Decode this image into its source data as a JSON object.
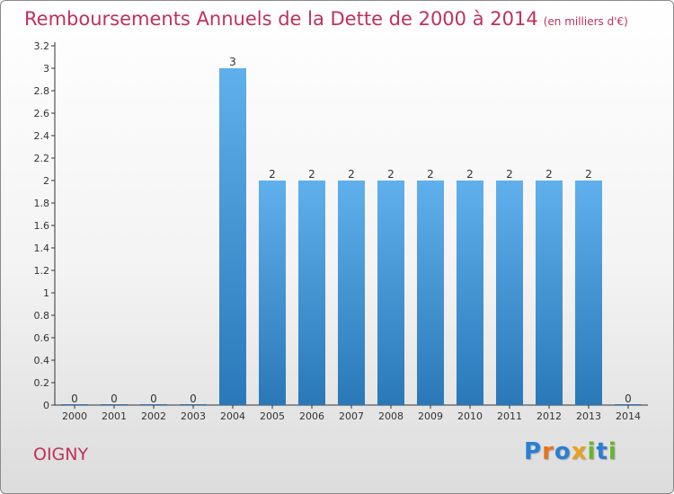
{
  "title": "Remboursements Annuels de la Dette de 2000 à 2014",
  "subtitle": "(en milliers d'€)",
  "commune": "OIGNY",
  "logo": {
    "text": "Proxiti",
    "colors": [
      "#2a7fd4",
      "#e8731f",
      "#2a7fd4",
      "#e8a21f",
      "#6bb42a",
      "#2a7fd4",
      "#6bb42a"
    ]
  },
  "colors": {
    "title": "#c0305a",
    "bar_top": "#5fb0ec",
    "bar_bottom": "#2a78b8",
    "axis": "#333333"
  },
  "chart_data": {
    "type": "bar",
    "title": "Remboursements Annuels de la Dette de 2000 à 2014",
    "xlabel": "",
    "ylabel": "",
    "categories": [
      "2000",
      "2001",
      "2002",
      "2003",
      "2004",
      "2005",
      "2006",
      "2007",
      "2008",
      "2009",
      "2010",
      "2011",
      "2012",
      "2013",
      "2014"
    ],
    "values": [
      0,
      0,
      0,
      0,
      3,
      2,
      2,
      2,
      2,
      2,
      2,
      2,
      2,
      2,
      0
    ],
    "ylim": [
      0,
      3.2
    ],
    "yticks": [
      "0",
      "0.2",
      "0.4",
      "0.6",
      "0.8",
      "1",
      "1.2",
      "1.4",
      "1.6",
      "1.8",
      "2",
      "2.2",
      "2.4",
      "2.6",
      "2.8",
      "3",
      "3.2"
    ],
    "grid": false
  }
}
